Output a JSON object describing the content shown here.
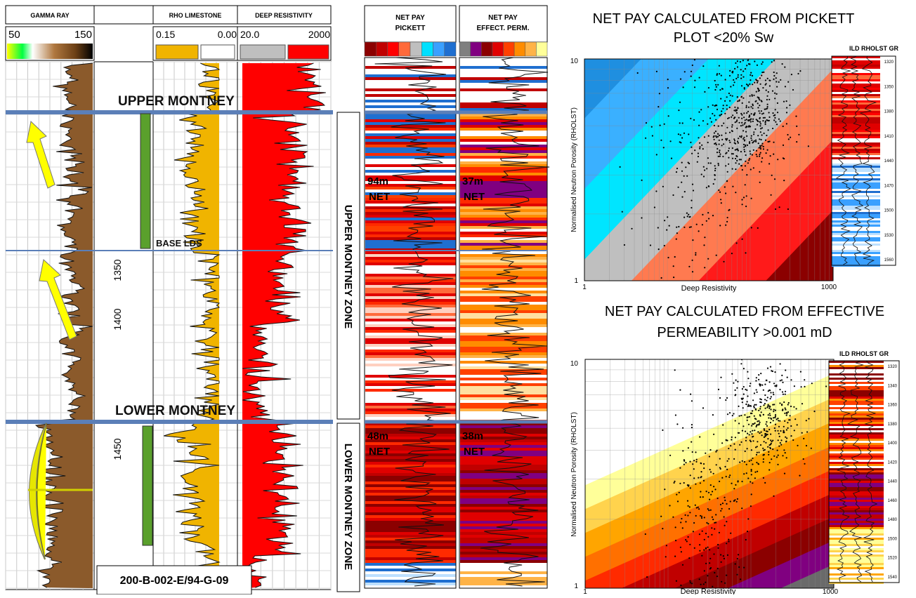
{
  "well_label": "200-B-002-E/94-G-09",
  "log_panel": {
    "tracks": {
      "gamma_ray": {
        "title": "GAMMA RAY",
        "scale_min": "50",
        "scale_max": "150"
      },
      "rho_limestone": {
        "title": "RHO LIMESTONE",
        "scale_min": "0.15",
        "scale_max": "0.00"
      },
      "deep_resistivity": {
        "title": "DEEP RESISTIVITY",
        "scale_min": "20.0",
        "scale_max": "2000"
      },
      "net_pay_pickett": {
        "title_line1": "NET PAY",
        "title_line2": "PICKETT"
      },
      "net_pay_perm": {
        "title_line1": "NET PAY",
        "title_line2": "EFFECT. PERM."
      }
    },
    "depth_labels": [
      "1350",
      "1400",
      "1450"
    ],
    "tops": {
      "upper": "UPPER MONTNEY",
      "base_lds": "BASE  LDS",
      "lower": "LOWER MONTNEY"
    },
    "zones": {
      "upper": "UPPER MONTNEY ZONE",
      "lower": "LOWER MONTNEY ZONE"
    },
    "net_pay": {
      "pickett_upper": {
        "value": "94m",
        "suffix": "NET"
      },
      "perm_upper": {
        "value": "37m",
        "suffix": "NET"
      },
      "pickett_lower": {
        "value": "48m",
        "suffix": "NET"
      },
      "perm_lower": {
        "value": "38m",
        "suffix": "NET"
      }
    }
  },
  "colors": {
    "pickett_scale": [
      "#8b0000",
      "#c00000",
      "#ff0000",
      "#ff6a3a",
      "#bfbfbf",
      "#00e0ff",
      "#3aa0ff",
      "#1f6fd0"
    ],
    "perm_scale": [
      "#7f7f7f",
      "#800080",
      "#8b0000",
      "#e00000",
      "#ff4000",
      "#ff8c00",
      "#ffb347",
      "#ffff99"
    ],
    "top_line": "#5b7fb8",
    "gr_fill": "#8b5a2b",
    "rho_fill": "#f0b400",
    "res_fill": "#ff0000"
  },
  "chart_data": [
    {
      "type": "scatter",
      "title": "NET PAY CALCULATED FROM PICKETT PLOT <20% Sw",
      "xlabel": "Deep Resistivity",
      "ylabel": "Normalised Neutron Porosity (RHOLST)",
      "xscale": "log",
      "yscale": "log",
      "xlim": [
        1,
        1000
      ],
      "ylim": [
        1,
        10
      ],
      "x_tick_labels": [
        "1",
        "1000"
      ],
      "y_tick_labels": [
        "1",
        "10"
      ],
      "grid": true,
      "background_bands": [
        "#1f8fe0",
        "#3ab0ff",
        "#00e5ff",
        "#bfbfbf",
        "#ff7a50",
        "#ff1a1a",
        "#8b0000"
      ],
      "clusters": [
        {
          "x_center": 25,
          "y_center": 3.2,
          "x_spread": 0.35,
          "y_spread": 0.32,
          "n": 260
        },
        {
          "x_center": 120,
          "y_center": 6.0,
          "x_spread": 0.22,
          "y_spread": 0.13,
          "n": 320
        },
        {
          "x_center": 60,
          "y_center": 4.4,
          "x_spread": 0.18,
          "y_spread": 0.12,
          "n": 120
        }
      ]
    },
    {
      "type": "scatter",
      "title": "NET PAY CALCULATED FROM EFFECTIVE PERMEABILITY >0.001 mD",
      "xlabel": "Deep Resistivity",
      "ylabel": "Normalised Neutron Porosity (RHOLST)",
      "xscale": "log",
      "yscale": "log",
      "xlim": [
        1,
        1000
      ],
      "ylim": [
        1,
        10
      ],
      "x_tick_labels": [
        "1",
        "1000"
      ],
      "y_tick_labels": [
        "1",
        "10"
      ],
      "grid": true,
      "background_bands": [
        "#ffff99",
        "#ffd34d",
        "#ffa500",
        "#ff7000",
        "#ff2a00",
        "#c00000",
        "#8b0000",
        "#800080",
        "#6a6a6a"
      ],
      "clusters": [
        {
          "x_center": 30,
          "y_center": 2.5,
          "x_spread": 0.25,
          "y_spread": 0.25,
          "n": 260
        },
        {
          "x_center": 150,
          "y_center": 5.5,
          "x_spread": 0.22,
          "y_spread": 0.12,
          "n": 360
        }
      ]
    }
  ],
  "mini_logs": [
    {
      "title": "ILD RHOLST GR",
      "depths": [
        "1320",
        "1350",
        "1380",
        "1410",
        "1440",
        "1470",
        "1500",
        "1530",
        "1560"
      ]
    },
    {
      "title": "ILD RHOLST GR",
      "depths": [
        "1320",
        "1340",
        "1360",
        "1380",
        "1400",
        "1420",
        "1440",
        "1460",
        "1480",
        "1500",
        "1520",
        "1540"
      ]
    }
  ]
}
